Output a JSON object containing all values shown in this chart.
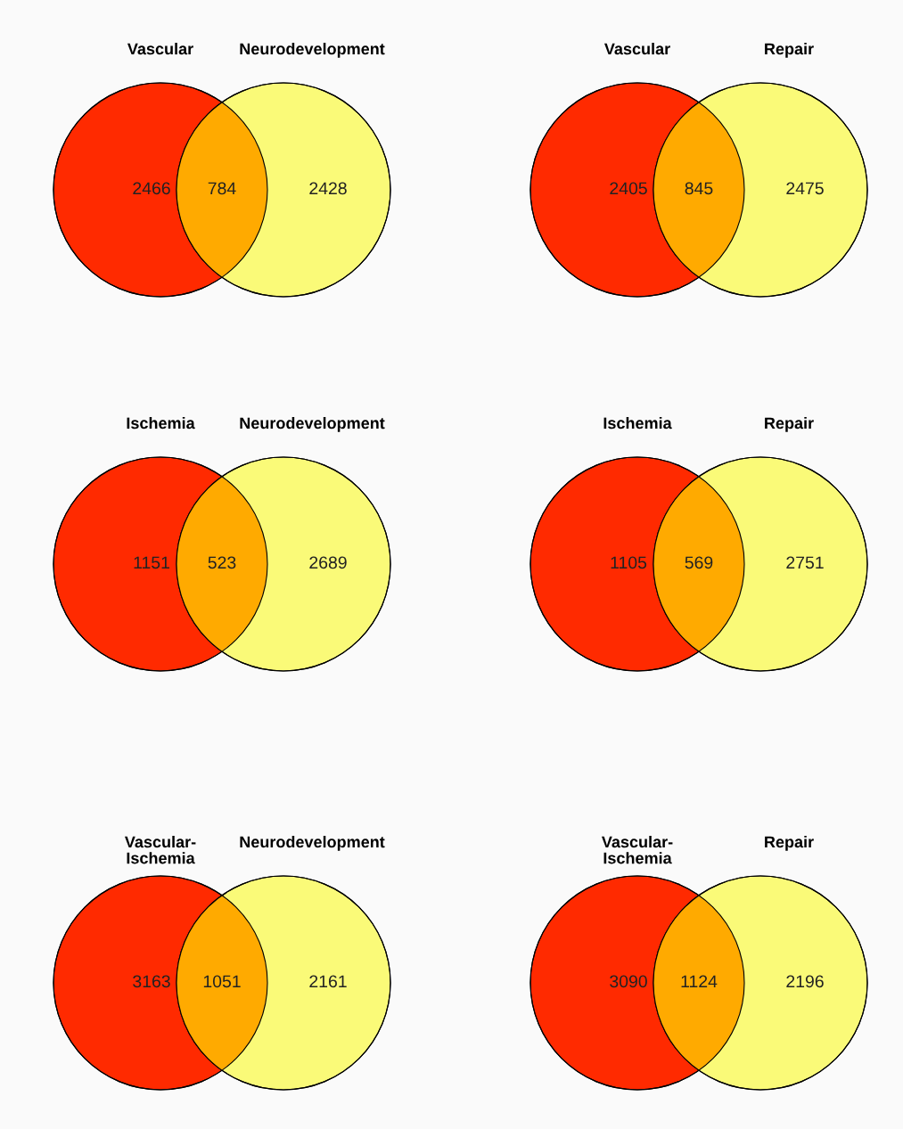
{
  "chart_data": [
    {
      "type": "other",
      "categories": [
        "Vascular",
        null,
        "Neurodevelopment"
      ],
      "data_labels": true,
      "values": [
        2466,
        784,
        2428
      ],
      "colors": [
        "#ff2a00",
        "#ffaa00",
        "#fafa78"
      ]
    },
    {
      "type": "other",
      "categories": [
        "Vascular",
        null,
        "Repair"
      ],
      "data_labels": true,
      "values": [
        2405,
        845,
        2475
      ],
      "colors": [
        "#ff2a00",
        "#ffaa00",
        "#fafa78"
      ]
    },
    {
      "type": "other",
      "categories": [
        "Ischemia",
        null,
        "Neurodevelopment"
      ],
      "data_labels": true,
      "values": [
        1151,
        523,
        2689
      ],
      "colors": [
        "#ff2a00",
        "#ffaa00",
        "#fafa78"
      ]
    },
    {
      "type": "other",
      "categories": [
        "Ischemia",
        null,
        "Repair"
      ],
      "data_labels": true,
      "values": [
        1105,
        569,
        2751
      ],
      "colors": [
        "#ff2a00",
        "#ffaa00",
        "#fafa78"
      ]
    },
    {
      "type": "other",
      "categories": [
        "Vascular-\nIschemia",
        null,
        "Neurodevelopment"
      ],
      "data_labels": true,
      "values": [
        3163,
        1051,
        2161
      ],
      "colors": [
        "#ff2a00",
        "#ffaa00",
        "#fafa78"
      ]
    },
    {
      "type": "other",
      "categories": [
        "Vascular-\nIschemia",
        null,
        "Repair"
      ],
      "data_labels": true,
      "values": [
        3090,
        1124,
        2196
      ],
      "colors": [
        "#ff2a00",
        "#ffaa00",
        "#fafa78"
      ]
    }
  ]
}
